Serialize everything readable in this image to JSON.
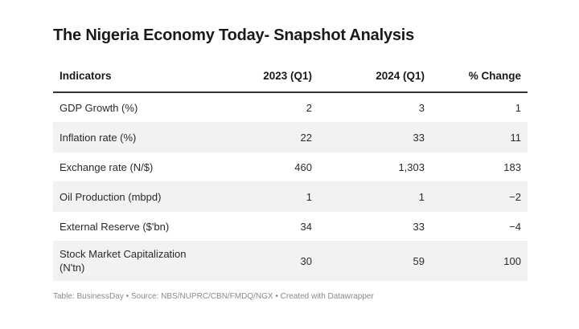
{
  "chart_data": {
    "type": "table",
    "title": "The Nigeria Economy Today- Snapshot Analysis",
    "columns": [
      "Indicators",
      "2023 (Q1)",
      "2024 (Q1)",
      "% Change"
    ],
    "rows": [
      [
        "GDP Growth (%)",
        "2",
        "3",
        "1"
      ],
      [
        "Inflation rate (%)",
        "22",
        "33",
        "11"
      ],
      [
        "Exchange rate (N/$)",
        "460",
        "1,303",
        "183"
      ],
      [
        "Oil Production (mbpd)",
        "1",
        "1",
        "−2"
      ],
      [
        "External Reserve ($'bn)",
        "34",
        "33",
        "−4"
      ],
      [
        "Stock Market Capitalization (N'tn)",
        "30",
        "59",
        "100"
      ]
    ],
    "footer": "Table: BusinessDay • Source: NBS/NUPRC/CBN/FMDQ/NGX • Created with Datawrapper"
  }
}
